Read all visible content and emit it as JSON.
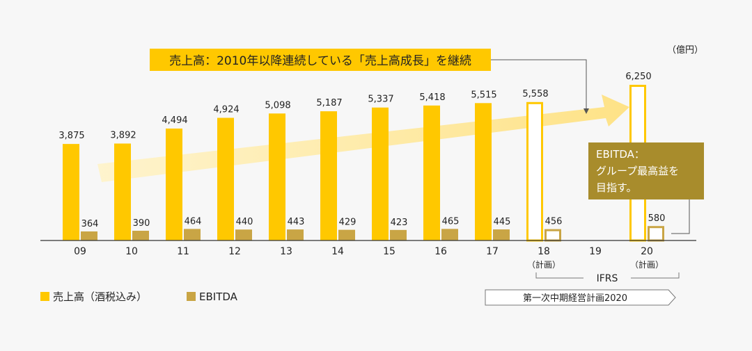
{
  "chart_data": {
    "type": "bar",
    "unit_label": "（億円）",
    "categories": [
      "09",
      "10",
      "11",
      "12",
      "13",
      "14",
      "15",
      "16",
      "17",
      "18",
      "19",
      "20"
    ],
    "category_sublabels": [
      "",
      "",
      "",
      "",
      "",
      "",
      "",
      "",
      "",
      "（計画）",
      "",
      "（計画）"
    ],
    "series": [
      {
        "name": "売上高（酒税込み）",
        "color": "#ffc800",
        "values": [
          3875,
          3892,
          4494,
          4924,
          5098,
          5187,
          5337,
          5418,
          5515,
          5558,
          null,
          6250
        ],
        "labels": [
          "3,875",
          "3,892",
          "4,494",
          "4,924",
          "5,098",
          "5,187",
          "5,337",
          "5,418",
          "5,515",
          "5,558",
          "",
          "6,250"
        ],
        "planned": [
          false,
          false,
          false,
          false,
          false,
          false,
          false,
          false,
          false,
          true,
          false,
          true
        ]
      },
      {
        "name": "EBITDA",
        "color": "#c9a545",
        "values": [
          364,
          390,
          464,
          440,
          443,
          429,
          423,
          465,
          445,
          456,
          null,
          580
        ],
        "labels": [
          "364",
          "390",
          "464",
          "440",
          "443",
          "429",
          "423",
          "465",
          "445",
          "456",
          "",
          "580"
        ],
        "planned": [
          false,
          false,
          false,
          false,
          false,
          false,
          false,
          false,
          false,
          true,
          false,
          true
        ]
      }
    ],
    "annotations": {
      "sales_callout": "売上高：2010年以降連続している「売上高成長」を継続",
      "ebitda_callout_title": "EBITDA：",
      "ebitda_callout_line1": "グループ最高益を",
      "ebitda_callout_line2": "目指す。",
      "ifrs_label": "IFRS",
      "plan_label": "第一次中期経営計画2020"
    },
    "legend": [
      "売上高（酒税込み）",
      "EBITDA"
    ],
    "legend_position": "bottom-left",
    "colors": {
      "sales": "#ffc800",
      "ebitda": "#c9a545",
      "callout_bg": "#a88c2c",
      "arrow": "#ffe89a"
    }
  }
}
